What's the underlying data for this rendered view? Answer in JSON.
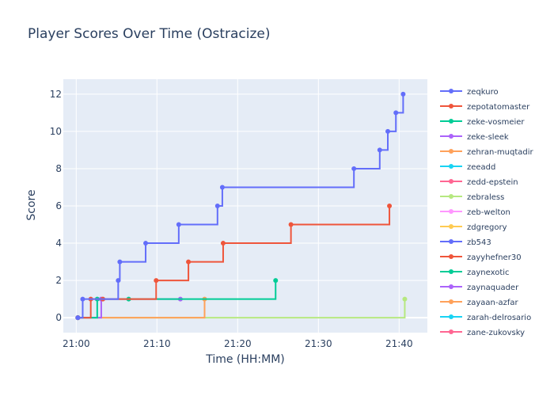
{
  "chart_data": {
    "type": "line",
    "line_shape": "step",
    "title": "Player Scores Over Time (Ostracize)",
    "xlabel": "Time (HH:MM)",
    "ylabel": "Score",
    "xlim": [
      "21:00",
      "21:40"
    ],
    "ylim": [
      -0.8,
      12.8
    ],
    "x_ticks": [
      "21:00",
      "21:10",
      "21:20",
      "21:30",
      "21:40"
    ],
    "y_ticks": [
      0,
      2,
      4,
      6,
      8,
      10,
      12
    ],
    "grid": true,
    "legend_position": "right",
    "series": [
      {
        "name": "zeqkuro",
        "color": "#636efa",
        "points": [
          {
            "x": "21:00:12",
            "y": 0
          },
          {
            "x": "21:00:48",
            "y": 1
          },
          {
            "x": "21:05:12",
            "y": 2
          },
          {
            "x": "21:05:24",
            "y": 3
          },
          {
            "x": "21:08:36",
            "y": 4
          },
          {
            "x": "21:12:42",
            "y": 5
          },
          {
            "x": "21:17:30",
            "y": 6
          },
          {
            "x": "21:18:06",
            "y": 7
          },
          {
            "x": "21:34:24",
            "y": 8
          },
          {
            "x": "21:37:36",
            "y": 9
          },
          {
            "x": "21:38:36",
            "y": 10
          },
          {
            "x": "21:39:36",
            "y": 11
          },
          {
            "x": "21:40:30",
            "y": 12
          }
        ]
      },
      {
        "name": "zepotatomaster",
        "color": "#ef553b",
        "points": [
          {
            "x": "21:00:12",
            "y": 0
          },
          {
            "x": "21:01:48",
            "y": 1
          },
          {
            "x": "21:03:18",
            "y": 1
          },
          {
            "x": "21:09:54",
            "y": 2
          },
          {
            "x": "21:13:54",
            "y": 3
          },
          {
            "x": "21:18:12",
            "y": 4
          },
          {
            "x": "21:26:36",
            "y": 5
          },
          {
            "x": "21:38:48",
            "y": 6
          }
        ]
      },
      {
        "name": "zeke-vosmeier",
        "color": "#00cc96",
        "points": [
          {
            "x": "21:00:12",
            "y": 0
          },
          {
            "x": "21:02:36",
            "y": 1
          },
          {
            "x": "21:06:30",
            "y": 1
          },
          {
            "x": "21:24:42",
            "y": 2
          }
        ]
      },
      {
        "name": "zeke-sleek",
        "color": "#ab63fa",
        "points": [
          {
            "x": "21:00:12",
            "y": 0
          },
          {
            "x": "21:03:06",
            "y": 1
          },
          {
            "x": "21:12:54",
            "y": 1
          }
        ]
      },
      {
        "name": "zehran-muqtadir",
        "color": "#ffa15a",
        "points": [
          {
            "x": "21:00:12",
            "y": 0
          },
          {
            "x": "21:15:54",
            "y": 1
          }
        ]
      },
      {
        "name": "zeeadd",
        "color": "#19d3f3",
        "points": [
          {
            "x": "21:00:12",
            "y": 0
          }
        ]
      },
      {
        "name": "zedd-epstein",
        "color": "#ff6692",
        "points": [
          {
            "x": "21:00:12",
            "y": 0
          }
        ]
      },
      {
        "name": "zebraless",
        "color": "#b6e880",
        "points": [
          {
            "x": "21:00:12",
            "y": 0
          },
          {
            "x": "21:40:42",
            "y": 1
          }
        ]
      },
      {
        "name": "zeb-welton",
        "color": "#ff97ff",
        "points": [
          {
            "x": "21:00:12",
            "y": 0
          }
        ]
      },
      {
        "name": "zdgregory",
        "color": "#fecb52",
        "points": [
          {
            "x": "21:00:12",
            "y": 0
          }
        ]
      },
      {
        "name": "zb543",
        "color": "#636efa",
        "points": [
          {
            "x": "21:00:12",
            "y": 0
          }
        ]
      },
      {
        "name": "zayyhefner30",
        "color": "#ef553b",
        "points": [
          {
            "x": "21:00:12",
            "y": 0
          }
        ]
      },
      {
        "name": "zaynexotic",
        "color": "#00cc96",
        "points": [
          {
            "x": "21:00:12",
            "y": 0
          }
        ]
      },
      {
        "name": "zaynaquader",
        "color": "#ab63fa",
        "points": [
          {
            "x": "21:00:12",
            "y": 0
          }
        ]
      },
      {
        "name": "zayaan-azfar",
        "color": "#ffa15a",
        "points": [
          {
            "x": "21:00:12",
            "y": 0
          }
        ]
      },
      {
        "name": "zarah-delrosario",
        "color": "#19d3f3",
        "points": [
          {
            "x": "21:00:12",
            "y": 0
          }
        ]
      },
      {
        "name": "zane-zukovsky",
        "color": "#ff6692",
        "points": [
          {
            "x": "21:00:12",
            "y": 0
          }
        ]
      }
    ]
  }
}
